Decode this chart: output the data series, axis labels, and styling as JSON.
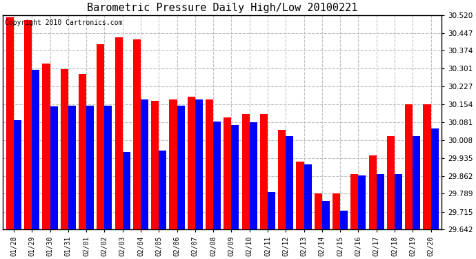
{
  "title": "Barometric Pressure Daily High/Low 20100221",
  "copyright_text": "Copyright 2010 Cartronics.com",
  "categories": [
    "01/28",
    "01/29",
    "01/30",
    "01/31",
    "02/01",
    "02/02",
    "02/03",
    "02/04",
    "02/05",
    "02/06",
    "02/07",
    "02/08",
    "02/09",
    "02/10",
    "02/11",
    "02/12",
    "02/13",
    "02/14",
    "02/15",
    "02/16",
    "02/17",
    "02/18",
    "02/19",
    "02/20"
  ],
  "highs": [
    30.51,
    30.5,
    30.32,
    30.3,
    30.28,
    30.4,
    30.43,
    30.42,
    30.17,
    30.175,
    30.185,
    30.175,
    30.1,
    30.115,
    30.115,
    30.05,
    29.92,
    29.79,
    29.79,
    29.87,
    29.945,
    30.025,
    30.155,
    30.155
  ],
  "lows": [
    30.09,
    30.295,
    30.145,
    30.15,
    30.15,
    30.15,
    29.96,
    30.175,
    29.965,
    30.15,
    30.175,
    30.085,
    30.07,
    30.08,
    29.795,
    30.025,
    29.91,
    29.76,
    29.72,
    29.865,
    29.87,
    29.87,
    30.025,
    30.055
  ],
  "ylim_min": 29.642,
  "ylim_max": 30.52,
  "yticks": [
    29.642,
    29.715,
    29.789,
    29.862,
    29.935,
    30.008,
    30.081,
    30.154,
    30.227,
    30.301,
    30.374,
    30.447,
    30.52
  ],
  "high_color": "#ff0000",
  "low_color": "#0000ff",
  "bg_color": "#ffffff",
  "grid_color": "#c0c0c0",
  "title_fontsize": 11,
  "copyright_fontsize": 7,
  "figwidth": 6.9,
  "figheight": 3.75,
  "dpi": 100
}
